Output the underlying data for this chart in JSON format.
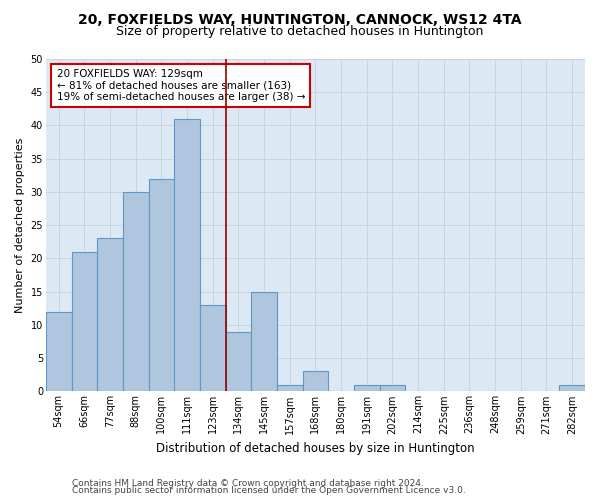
{
  "title1": "20, FOXFIELDS WAY, HUNTINGTON, CANNOCK, WS12 4TA",
  "title2": "Size of property relative to detached houses in Huntington",
  "xlabel": "Distribution of detached houses by size in Huntington",
  "ylabel": "Number of detached properties",
  "categories": [
    "54sqm",
    "66sqm",
    "77sqm",
    "88sqm",
    "100sqm",
    "111sqm",
    "123sqm",
    "134sqm",
    "145sqm",
    "157sqm",
    "168sqm",
    "180sqm",
    "191sqm",
    "202sqm",
    "214sqm",
    "225sqm",
    "236sqm",
    "248sqm",
    "259sqm",
    "271sqm",
    "282sqm"
  ],
  "values": [
    12,
    21,
    23,
    30,
    32,
    41,
    13,
    9,
    15,
    1,
    3,
    0,
    1,
    1,
    0,
    0,
    0,
    0,
    0,
    0,
    1
  ],
  "bar_color": "#aec6de",
  "bar_edge_color": "#6096c8",
  "grid_color": "#c8d4e0",
  "bg_color": "#dce8f4",
  "vline_color": "#990000",
  "vline_x_index": 6,
  "annotation_text": "20 FOXFIELDS WAY: 129sqm\n← 81% of detached houses are smaller (163)\n19% of semi-detached houses are larger (38) →",
  "annotation_box_color": "#cc0000",
  "ylim": [
    0,
    50
  ],
  "yticks": [
    0,
    5,
    10,
    15,
    20,
    25,
    30,
    35,
    40,
    45,
    50
  ],
  "footer1": "Contains HM Land Registry data © Crown copyright and database right 2024.",
  "footer2": "Contains public sector information licensed under the Open Government Licence v3.0.",
  "title1_fontsize": 10,
  "title2_fontsize": 9,
  "xlabel_fontsize": 8.5,
  "ylabel_fontsize": 8,
  "tick_fontsize": 7,
  "footer_fontsize": 6.5,
  "ann_fontsize": 7.5
}
